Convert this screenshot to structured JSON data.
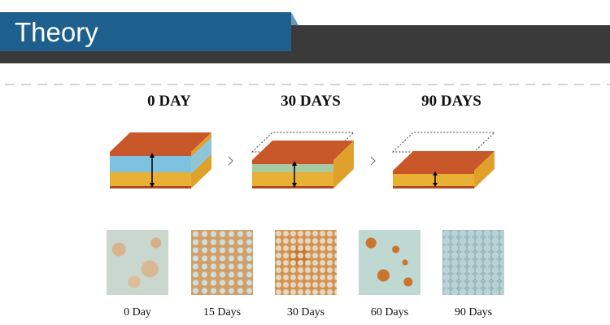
{
  "header": {
    "title": "Theory"
  },
  "stages": [
    "0 DAY",
    "30 DAYS",
    "90 DAYS"
  ],
  "samples": [
    "0 Day",
    "15 Days",
    "30 Days",
    "60 Days",
    "90 Days"
  ]
}
